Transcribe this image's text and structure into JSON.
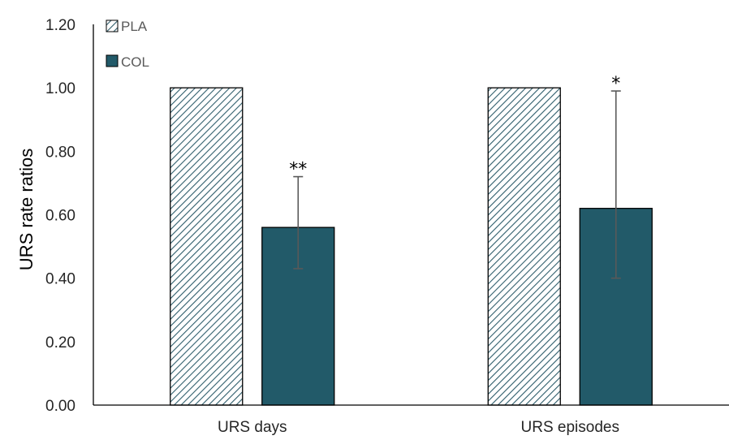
{
  "chart_data": {
    "type": "bar",
    "categories": [
      "URS days",
      "URS episodes"
    ],
    "series": [
      {
        "name": "PLA",
        "values": [
          1.0,
          1.0
        ],
        "pattern": "hatched",
        "color": "#2E5D6B",
        "error_low": [
          null,
          null
        ],
        "error_high": [
          null,
          null
        ]
      },
      {
        "name": "COL",
        "values": [
          0.56,
          0.62
        ],
        "pattern": "solid",
        "color": "#225A69",
        "error_low": [
          0.43,
          0.4
        ],
        "error_high": [
          0.72,
          0.99
        ]
      }
    ],
    "significance": [
      "**",
      "*"
    ],
    "ylabel": "URS rate ratios",
    "xlabel": "",
    "ylim": [
      0,
      1.2
    ],
    "yticks": [
      "0.00",
      "0.20",
      "0.40",
      "0.60",
      "0.80",
      "1.00",
      "1.20"
    ],
    "legend_position": "top-left",
    "grid": false
  }
}
